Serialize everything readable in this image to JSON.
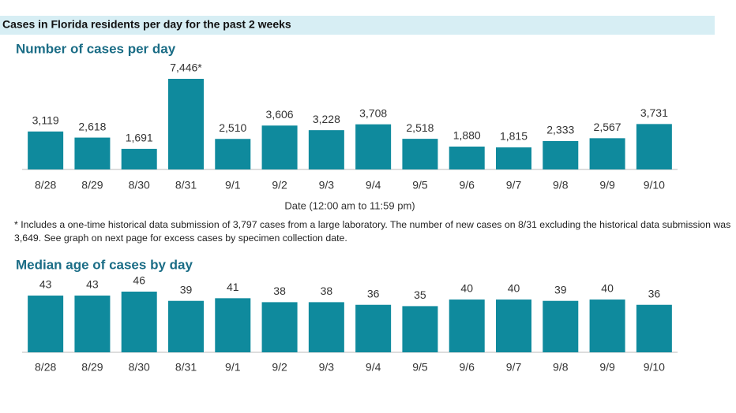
{
  "title": "Cases in Florida residents per day for the past 2 weeks",
  "chart_data": [
    {
      "type": "bar",
      "title": "Number of cases per day",
      "categories": [
        "8/28",
        "8/29",
        "8/30",
        "8/31",
        "9/1",
        "9/2",
        "9/3",
        "9/4",
        "9/5",
        "9/6",
        "9/7",
        "9/8",
        "9/9",
        "9/10"
      ],
      "values": [
        3119,
        2618,
        1691,
        7446,
        2510,
        3606,
        3228,
        3708,
        2518,
        1880,
        1815,
        2333,
        2567,
        3731
      ],
      "value_labels": [
        "3,119",
        "2,618",
        "1,691",
        "7,446*",
        "2,510",
        "3,606",
        "3,228",
        "3,708",
        "2,518",
        "1,880",
        "1,815",
        "2,333",
        "2,567",
        "3,731"
      ],
      "x_label": "Date (12:00 am to 11:59 pm)",
      "footnote": "* Includes a one-time historical data submission of 3,797 cases from a large laboratory. The number of new cases on 8/31 excluding the historical data submission was 3,649. See graph on next page for excess cases by specimen collection date.",
      "color": "#0f8a9d"
    },
    {
      "type": "bar",
      "title": "Median age of cases by day",
      "categories": [
        "8/28",
        "8/29",
        "8/30",
        "8/31",
        "9/1",
        "9/2",
        "9/3",
        "9/4",
        "9/5",
        "9/6",
        "9/7",
        "9/8",
        "9/9",
        "9/10"
      ],
      "values": [
        43,
        43,
        46,
        39,
        41,
        38,
        38,
        36,
        35,
        40,
        40,
        39,
        40,
        36
      ],
      "color": "#0f8a9d"
    }
  ]
}
